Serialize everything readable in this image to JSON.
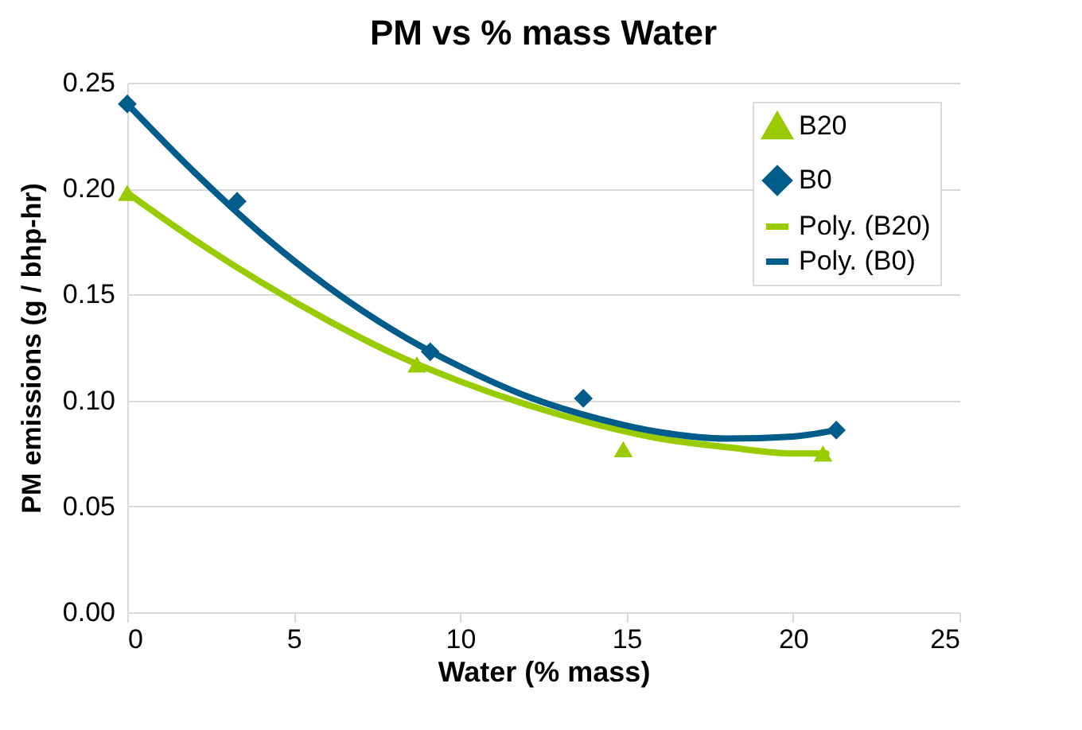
{
  "chart_data": {
    "type": "scatter",
    "title": "PM vs % mass Water",
    "xlabel": "Water (% mass)",
    "ylabel": "PM emissions (g / bhp-hr)",
    "xlim": [
      0,
      25
    ],
    "xticks": [
      0,
      5,
      10,
      15,
      20,
      25
    ],
    "ylim": [
      0,
      0.25
    ],
    "yticks": [
      {
        "value": 0,
        "label": "0.00"
      },
      {
        "value": 0.05,
        "label": "0.05"
      },
      {
        "value": 0.1,
        "label": "0.10"
      },
      {
        "value": 0.15,
        "label": "0.15"
      },
      {
        "value": 0.2,
        "label": "0.20"
      },
      {
        "value": 0.25,
        "label": "0.25"
      }
    ],
    "grid": "y",
    "legend": "top right",
    "series": [
      {
        "name": "B20",
        "type": "scatter",
        "marker": "triangle",
        "color": "#99cc00",
        "x": [
          0,
          8.7,
          14.9,
          20.9
        ],
        "values": [
          0.198,
          0.117,
          0.077,
          0.075
        ]
      },
      {
        "name": "B0",
        "type": "scatter",
        "marker": "diamond",
        "color": "#005c8a",
        "x": [
          0,
          3.3,
          9.1,
          13.7,
          21.3
        ],
        "values": [
          0.24,
          0.194,
          0.123,
          0.101,
          0.086
        ]
      },
      {
        "name": "Poly. (B20)",
        "type": "line",
        "color": "#99cc00",
        "x": [
          0,
          2,
          4,
          6,
          8,
          10,
          12,
          14,
          16,
          18,
          20,
          21
        ],
        "values": [
          0.198,
          0.176,
          0.156,
          0.138,
          0.122,
          0.109,
          0.098,
          0.089,
          0.082,
          0.078,
          0.075,
          0.075
        ]
      },
      {
        "name": "Poly. (B0)",
        "type": "line",
        "color": "#005c8a",
        "x": [
          0,
          2,
          4,
          6,
          8,
          10,
          12,
          14,
          16,
          18,
          20,
          21.3
        ],
        "values": [
          0.24,
          0.208,
          0.179,
          0.154,
          0.133,
          0.116,
          0.102,
          0.092,
          0.085,
          0.082,
          0.083,
          0.086
        ]
      }
    ]
  }
}
